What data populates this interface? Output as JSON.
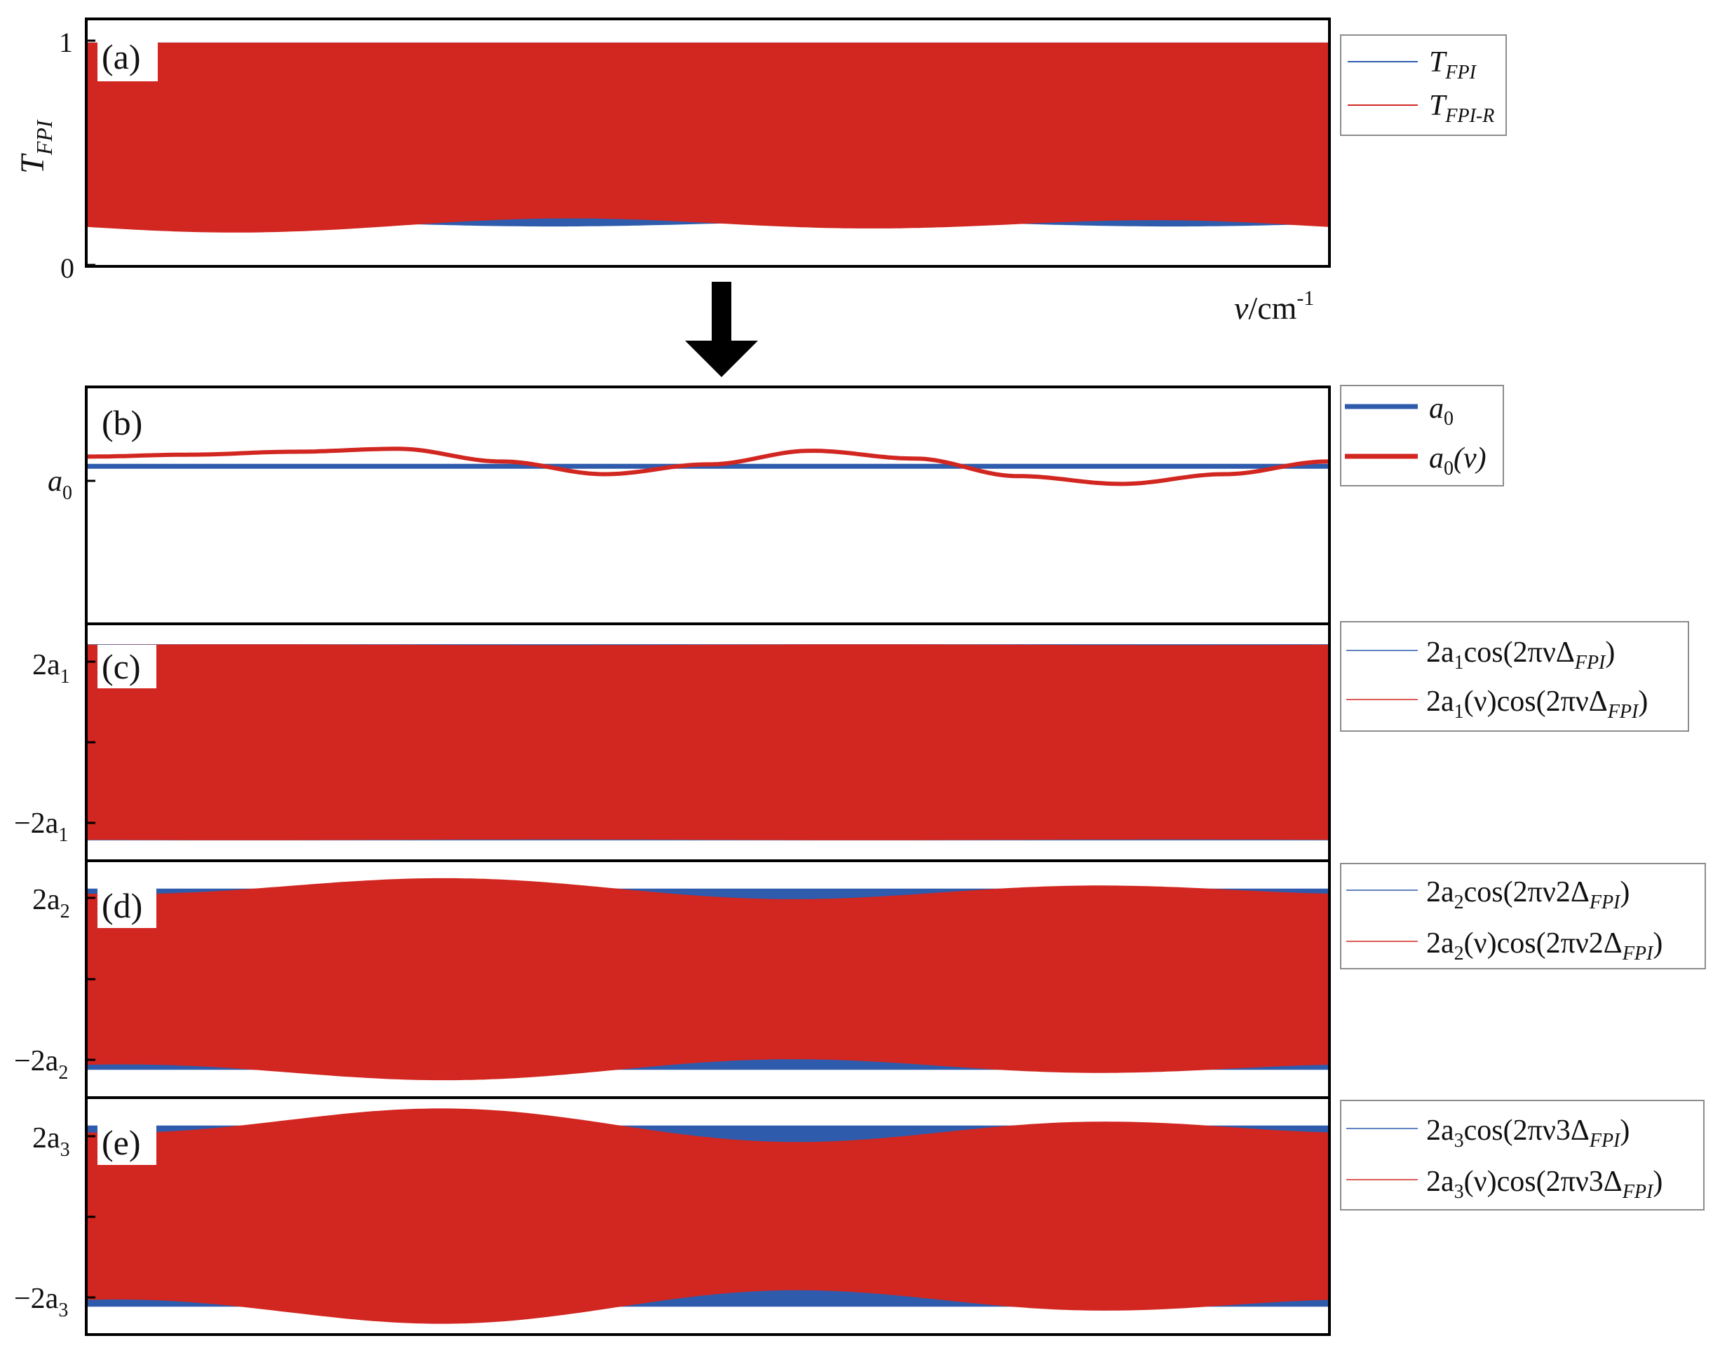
{
  "colors": {
    "blue": "#2f5bad",
    "red": "#d22620",
    "frame": "#000000",
    "legend_border": "#8c8c8c"
  },
  "arrow": {
    "icon": "down-arrow-icon"
  },
  "chart_data": [
    {
      "type": "area",
      "panel": "(a)",
      "ylabel": {
        "main": "T",
        "sub": "FPI"
      },
      "xlabel": {
        "nu": "ν",
        "unit": "/cm",
        "sup": "-1"
      },
      "y_ticks": [
        {
          "label": "1",
          "value": 1
        },
        {
          "label": "0",
          "value": 0
        }
      ],
      "ylim": [
        0,
        1.1
      ],
      "grid": false,
      "legend_position": "right",
      "series": [
        {
          "name": {
            "main": "T",
            "sub": "FPI"
          },
          "color": "#2f5bad",
          "shape": "fast fringe oscillation between ~0.18 and 1",
          "upper": 1.0,
          "lower_base": 0.185,
          "envelope": [
            {
              "amp": 0.012,
              "period": 0.5,
              "phase": 0
            }
          ]
        },
        {
          "name": {
            "main": "T",
            "sub": "FPI-R"
          },
          "color": "#d22620",
          "shape": "fast fringe oscillation with slowly varying lower envelope",
          "upper": 1.0,
          "lower_base": 0.18,
          "envelope": [
            {
              "amp": 0.025,
              "period": 0.5,
              "phase": 0
            },
            {
              "amp": 0.01,
              "period": 1.0,
              "phase": 1.2
            }
          ]
        }
      ]
    },
    {
      "type": "line",
      "panel": "(b)",
      "y_ticks": [
        {
          "label": "a",
          "sub": "0",
          "value": 0
        }
      ],
      "ylim": [
        -1.6,
        0.8
      ],
      "grid": false,
      "legend_position": "right",
      "series": [
        {
          "name": {
            "main": "a",
            "sub": "0",
            "suffix": ""
          },
          "color": "#2f5bad",
          "y": [
            0,
            0,
            0,
            0,
            0,
            0,
            0,
            0,
            0,
            0,
            0,
            0,
            0
          ]
        },
        {
          "name": {
            "main": "a",
            "sub": "0",
            "suffix": "(ν)"
          },
          "color": "#d22620",
          "y": [
            0.1,
            0.12,
            0.15,
            0.18,
            0.05,
            -0.08,
            0.02,
            0.16,
            0.08,
            -0.1,
            -0.18,
            -0.08,
            0.05
          ]
        }
      ]
    },
    {
      "type": "area",
      "panel": "(c)",
      "y_ticks": [
        {
          "label": "2a",
          "sub": "1",
          "value": 1
        },
        {
          "label": "−2a",
          "sub": "1",
          "value": -1
        }
      ],
      "ylim": [
        -1.2,
        1.2
      ],
      "grid": false,
      "legend_position": "right",
      "series": [
        {
          "name": {
            "pre": "2a",
            "sub": "1",
            "mid": "",
            "post": "cos(2πνΔ",
            "post_sub": "FPI",
            "end": ")"
          },
          "color": "#2f5bad",
          "envelope": []
        },
        {
          "name": {
            "pre": "2a",
            "sub": "1",
            "mid": "(ν)",
            "post": "cos(2πνΔ",
            "post_sub": "FPI",
            "end": ")"
          },
          "color": "#d22620",
          "envelope": [
            {
              "amp": 0.004,
              "period": 0.5,
              "phase": 0
            }
          ]
        }
      ]
    },
    {
      "type": "area",
      "panel": "(d)",
      "y_ticks": [
        {
          "label": "2a",
          "sub": "2",
          "value": 1
        },
        {
          "label": "−2a",
          "sub": "2",
          "value": -1
        }
      ],
      "ylim": [
        -1.3,
        1.3
      ],
      "grid": false,
      "legend_position": "right",
      "series": [
        {
          "name": {
            "pre": "2a",
            "sub": "2",
            "mid": "",
            "post": "cos(2πν2Δ",
            "post_sub": "FPI",
            "end": ")"
          },
          "color": "#2f5bad",
          "envelope": []
        },
        {
          "name": {
            "pre": "2a",
            "sub": "2",
            "mid": "(ν)",
            "post": "cos(2πν2Δ",
            "post_sub": "FPI",
            "end": ")"
          },
          "color": "#d22620",
          "envelope": [
            {
              "amp": 0.08,
              "period": 0.5,
              "phase": -2.2
            },
            {
              "amp": 0.05,
              "period": 1.0,
              "phase": 0.3
            }
          ]
        }
      ]
    },
    {
      "type": "area",
      "panel": "(e)",
      "y_ticks": [
        {
          "label": "2a",
          "sub": "3",
          "value": 1
        },
        {
          "label": "−2a",
          "sub": "3",
          "value": -1
        }
      ],
      "ylim": [
        -1.3,
        1.3
      ],
      "grid": false,
      "legend_position": "right",
      "series": [
        {
          "name": {
            "pre": "2a",
            "sub": "3",
            "mid": "",
            "post": "cos(2πν3Δ",
            "post_sub": "FPI",
            "end": ")"
          },
          "color": "#2f5bad",
          "envelope": []
        },
        {
          "name": {
            "pre": "2a",
            "sub": "3",
            "mid": "(ν)",
            "post": "cos(2πν3Δ",
            "post_sub": "FPI",
            "end": ")"
          },
          "color": "#d22620",
          "envelope": [
            {
              "amp": 0.12,
              "period": 0.5,
              "phase": -2.2
            },
            {
              "amp": 0.09,
              "period": 1.0,
              "phase": 0.3
            }
          ]
        }
      ]
    }
  ]
}
